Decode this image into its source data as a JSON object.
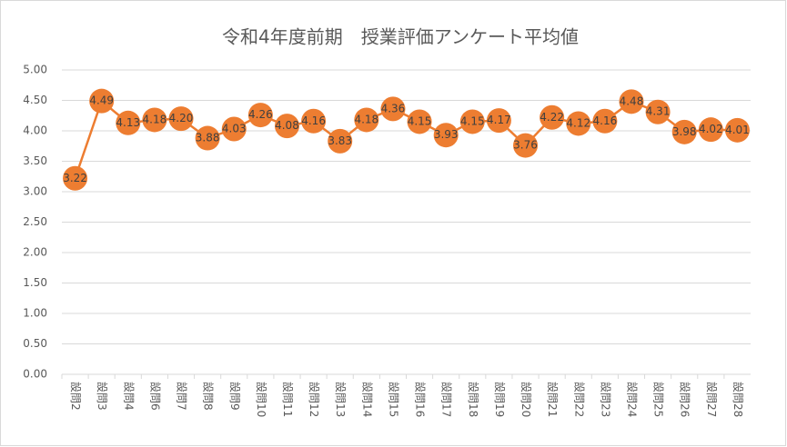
{
  "chart_data": {
    "type": "line",
    "title": "令和4年度前期　授業評価アンケート平均値",
    "categories": [
      "設問2",
      "設問3",
      "設問4",
      "設問6",
      "設問7",
      "設問8",
      "設問9",
      "設問10",
      "設問11",
      "設問12",
      "設問13",
      "設問14",
      "設問15",
      "設問16",
      "設問17",
      "設問18",
      "設問19",
      "設問20",
      "設問21",
      "設問22",
      "設問23",
      "設問24",
      "設問25",
      "設問26",
      "設問27",
      "設問28"
    ],
    "values": [
      3.22,
      4.49,
      4.13,
      4.18,
      4.2,
      3.88,
      4.03,
      4.26,
      4.08,
      4.16,
      3.83,
      4.18,
      4.36,
      4.15,
      3.93,
      4.15,
      4.17,
      3.76,
      4.22,
      4.12,
      4.16,
      4.48,
      4.31,
      3.98,
      4.02,
      4.01
    ],
    "value_labels": [
      "3.22",
      "4.49",
      "4.13",
      "4.18",
      "4.20",
      "3.88",
      "4.03",
      "4.26",
      "4.08",
      "4.16",
      "3.83",
      "4.18",
      "4.36",
      "4.15",
      "3.93",
      "4.15",
      "4.17",
      "3.76",
      "4.22",
      "4.12",
      "4.16",
      "4.48",
      "4.31",
      "3.98",
      "4.02",
      "4.01"
    ],
    "color": "#ed7d31",
    "ylim": [
      0,
      5
    ],
    "yticks": [
      {
        "value": 0,
        "label": "0.00"
      },
      {
        "value": 0.5,
        "label": "0.50"
      },
      {
        "value": 1,
        "label": "1.00"
      },
      {
        "value": 1.5,
        "label": "1.50"
      },
      {
        "value": 2,
        "label": "2.00"
      },
      {
        "value": 2.5,
        "label": "2.50"
      },
      {
        "value": 3,
        "label": "3.00"
      },
      {
        "value": 3.5,
        "label": "3.50"
      },
      {
        "value": 4,
        "label": "4.00"
      },
      {
        "value": 4.5,
        "label": "4.50"
      },
      {
        "value": 5,
        "label": "5.00"
      }
    ],
    "grid": true
  }
}
